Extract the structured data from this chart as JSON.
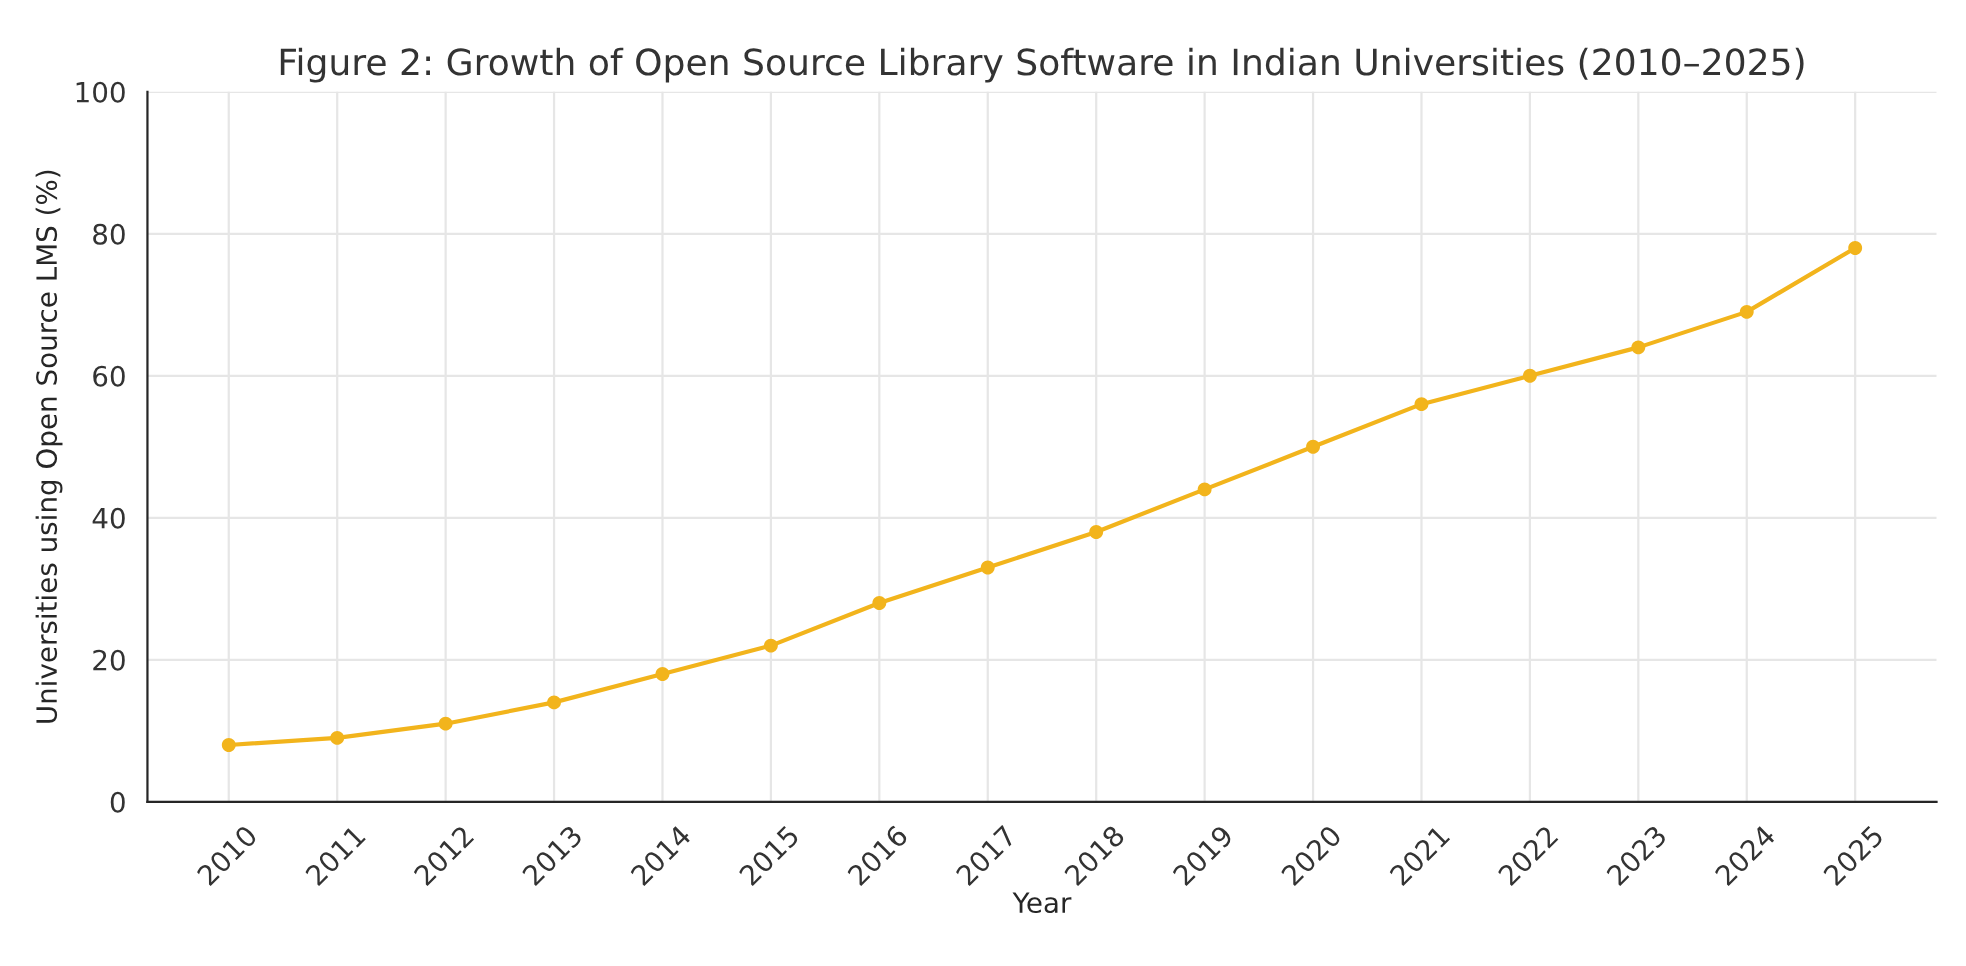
{
  "chart_data": {
    "type": "line",
    "title": "Figure 2: Growth of Open Source Library Software in Indian Universities (2010–2025)",
    "xlabel": "Year",
    "ylabel": "Universities using Open Source LMS (%)",
    "categories": [
      "2010",
      "2011",
      "2012",
      "2013",
      "2014",
      "2015",
      "2016",
      "2017",
      "2018",
      "2019",
      "2020",
      "2021",
      "2022",
      "2023",
      "2024",
      "2025"
    ],
    "series": [
      {
        "color": "#f2b41c",
        "values": [
          8,
          9,
          11,
          14,
          18,
          22,
          28,
          33,
          38,
          44,
          50,
          56,
          60,
          64,
          69,
          78
        ]
      }
    ],
    "ylim": [
      0,
      100
    ],
    "yticks": [
      0,
      20,
      40,
      60,
      80,
      100
    ],
    "grid": true,
    "marker": "circle",
    "line_style": "solid"
  }
}
